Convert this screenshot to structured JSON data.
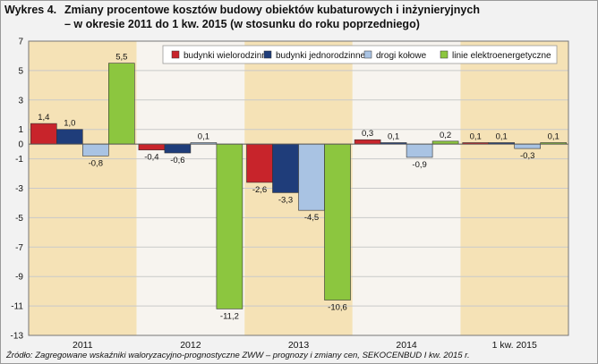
{
  "header": {
    "label": "Wykres 4.",
    "title": "Zmiany procentowe kosztów budowy obiektów kubaturowych i inżynieryjnych",
    "subtitle": "– w okresie 2011 do 1 kw. 2015 (w stosunku do roku poprzedniego)"
  },
  "footer": {
    "source": "Źródło:  Zagregowane wskaźniki waloryzacyjno-prognostyczne ZWW – prognozy i zmiany cen, SEKOCENBUD I kw. 2015 r."
  },
  "chart_data": {
    "type": "bar",
    "title": "Zmiany procentowe kosztów budowy obiektów kubaturowych i inżynieryjnych",
    "subtitle": "– w okresie 2011 do 1 kw. 2015 (w stosunku do roku poprzedniego)",
    "categories": [
      "2011",
      "2012",
      "2013",
      "2014",
      "1 kw. 2015"
    ],
    "series": [
      {
        "name": "budynki wielorodzinne",
        "color": "#c8242b",
        "values": [
          1.4,
          -0.4,
          -2.6,
          0.3,
          0.1
        ],
        "labels": [
          "1,4",
          "-0,4",
          "-2,6",
          "0,3",
          "0,1"
        ]
      },
      {
        "name": "budynki jednorodzinne",
        "color": "#1f3d7a",
        "values": [
          1.0,
          -0.6,
          -3.3,
          0.1,
          0.1
        ],
        "labels": [
          "1,0",
          "-0,6",
          "-3,3",
          "0,1",
          "0,1"
        ]
      },
      {
        "name": "drogi kołowe",
        "color": "#a9c3e3",
        "values": [
          -0.8,
          0.1,
          -4.5,
          -0.9,
          -0.3
        ],
        "labels": [
          "-0,8",
          "0,1",
          "-4,5",
          "-0,9",
          "-0,3"
        ]
      },
      {
        "name": "linie elektroenergetyczne",
        "color": "#8cc63f",
        "values": [
          5.5,
          -11.2,
          -10.6,
          0.2,
          0.1
        ],
        "labels": [
          "5,5",
          "-11,2",
          "-10,6",
          "0,2",
          "0,1"
        ]
      }
    ],
    "y_ticks": [
      7,
      5,
      3,
      1,
      0,
      -1,
      -3,
      -5,
      -7,
      -9,
      -11,
      -13
    ],
    "y_tick_labels": [
      "7",
      "5",
      "3",
      "1",
      "0",
      "-1",
      "-3",
      "-5",
      "-7",
      "-9",
      "-11",
      "-13"
    ],
    "ylim": [
      -13,
      7
    ],
    "grid": true,
    "legend_position": "top-right",
    "background_bands": [
      "#f5e2b6",
      "#f7f4ef"
    ]
  }
}
